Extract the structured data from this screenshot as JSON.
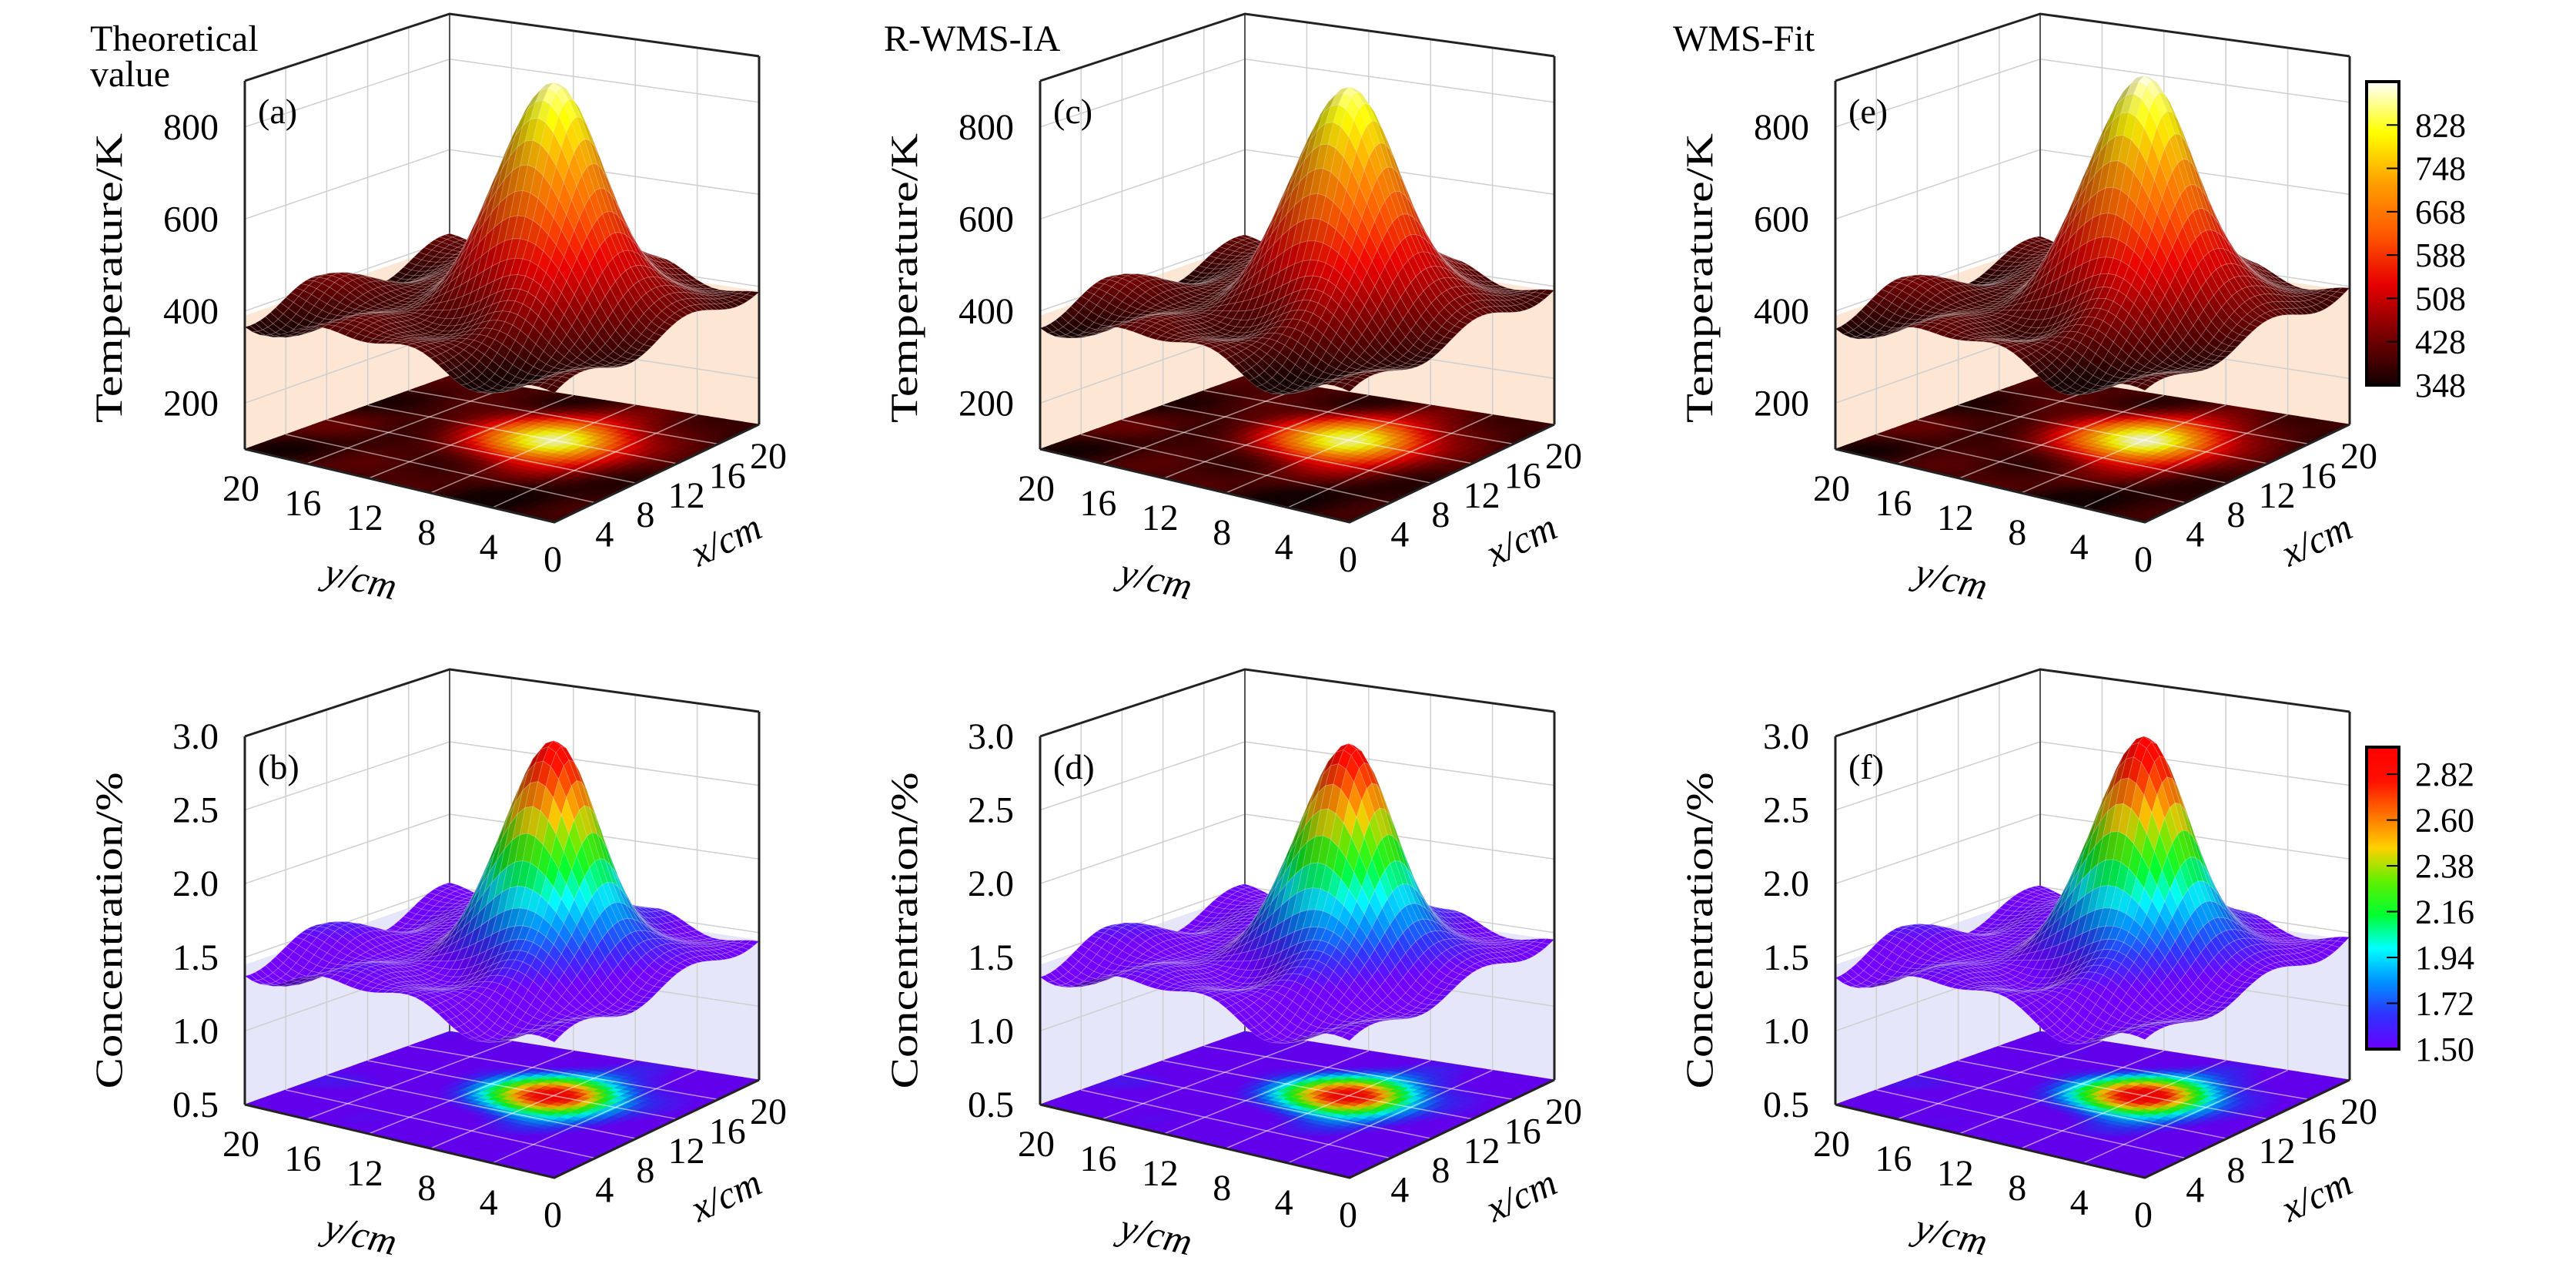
{
  "column_titles": [
    {
      "lines": [
        "Theoretical",
        "value"
      ]
    },
    {
      "lines": [
        "R-WMS-IA"
      ]
    },
    {
      "lines": [
        "WMS-Fit"
      ]
    }
  ],
  "chart_data": [
    {
      "type": "surface3d",
      "panel_label": "(a)",
      "column": 0,
      "row": 0,
      "quantity": "temperature",
      "zlabel": "Temperature/K",
      "xlabel": "x/cm",
      "ylabel": "y/cm",
      "origin_label": "0",
      "xlim": [
        0,
        20
      ],
      "ylim": [
        0,
        20
      ],
      "zlim": [
        100,
        900
      ],
      "xticks": [
        "4",
        "8",
        "12",
        "16",
        "20"
      ],
      "yticks": [
        "4",
        "8",
        "12",
        "16",
        "20"
      ],
      "zticks": [
        200,
        400,
        600,
        800
      ],
      "ztick_labels": [
        "200",
        "400",
        "600",
        "800"
      ],
      "peak": {
        "x": 12,
        "y": 8,
        "value": 880
      },
      "base_level": 390,
      "colormap": "hot",
      "wall_tint": "#fde7d4"
    },
    {
      "type": "surface3d",
      "panel_label": "(b)",
      "column": 0,
      "row": 1,
      "quantity": "concentration",
      "zlabel": "Concentration/%",
      "xlabel": "x/cm",
      "ylabel": "y/cm",
      "origin_label": "0",
      "xlim": [
        0,
        20
      ],
      "ylim": [
        0,
        20
      ],
      "zlim": [
        0.5,
        3.0
      ],
      "xticks": [
        "4",
        "8",
        "12",
        "16",
        "20"
      ],
      "yticks": [
        "4",
        "8",
        "12",
        "16",
        "20"
      ],
      "zticks": [
        0.5,
        1.0,
        1.5,
        2.0,
        2.5,
        3.0
      ],
      "ztick_labels": [
        "0.5",
        "1.0",
        "1.5",
        "2.0",
        "2.5",
        "3.0"
      ],
      "peak": {
        "x": 12,
        "y": 8,
        "value": 2.92
      },
      "base_level": 1.45,
      "colormap": "jet",
      "wall_tint": "#e6e6fa"
    },
    {
      "type": "surface3d",
      "panel_label": "(c)",
      "column": 1,
      "row": 0,
      "quantity": "temperature",
      "zlabel": "Temperature/K",
      "xlabel": "x/cm",
      "ylabel": "y/cm",
      "origin_label": "0",
      "xlim": [
        0,
        20
      ],
      "ylim": [
        0,
        20
      ],
      "zlim": [
        100,
        900
      ],
      "xticks": [
        "4",
        "8",
        "12",
        "16",
        "20"
      ],
      "yticks": [
        "4",
        "8",
        "12",
        "16",
        "20"
      ],
      "zticks": [
        200,
        400,
        600,
        800
      ],
      "ztick_labels": [
        "200",
        "400",
        "600",
        "800"
      ],
      "peak": {
        "x": 12,
        "y": 8,
        "value": 870
      },
      "base_level": 390,
      "colormap": "hot",
      "wall_tint": "#fde7d4"
    },
    {
      "type": "surface3d",
      "panel_label": "(d)",
      "column": 1,
      "row": 1,
      "quantity": "concentration",
      "zlabel": "Concentration/%",
      "xlabel": "x/cm",
      "ylabel": "y/cm",
      "origin_label": "0",
      "xlim": [
        0,
        20
      ],
      "ylim": [
        0,
        20
      ],
      "zlim": [
        0.5,
        3.0
      ],
      "xticks": [
        "4",
        "8",
        "12",
        "16",
        "20"
      ],
      "yticks": [
        "4",
        "8",
        "12",
        "16",
        "20"
      ],
      "zticks": [
        0.5,
        1.0,
        1.5,
        2.0,
        2.5,
        3.0
      ],
      "ztick_labels": [
        "0.5",
        "1.0",
        "1.5",
        "2.0",
        "2.5",
        "3.0"
      ],
      "peak": {
        "x": 12,
        "y": 8,
        "value": 2.9
      },
      "base_level": 1.45,
      "colormap": "jet",
      "wall_tint": "#e6e6fa"
    },
    {
      "type": "surface3d",
      "panel_label": "(e)",
      "column": 2,
      "row": 0,
      "quantity": "temperature",
      "zlabel": "Temperature/K",
      "xlabel": "x/cm",
      "ylabel": "y/cm",
      "origin_label": "0",
      "xlim": [
        0,
        20
      ],
      "ylim": [
        0,
        20
      ],
      "zlim": [
        100,
        900
      ],
      "xticks": [
        "4",
        "8",
        "12",
        "16",
        "20"
      ],
      "yticks": [
        "4",
        "8",
        "12",
        "16",
        "20"
      ],
      "zticks": [
        200,
        400,
        600,
        800
      ],
      "ztick_labels": [
        "200",
        "400",
        "600",
        "800"
      ],
      "peak": {
        "x": 12,
        "y": 8,
        "value": 895
      },
      "base_level": 390,
      "colormap": "hot",
      "wall_tint": "#fde7d4"
    },
    {
      "type": "surface3d",
      "panel_label": "(f)",
      "column": 2,
      "row": 1,
      "quantity": "concentration",
      "zlabel": "Concentration/%",
      "xlabel": "x/cm",
      "ylabel": "y/cm",
      "origin_label": "0",
      "xlim": [
        0,
        20
      ],
      "ylim": [
        0,
        20
      ],
      "zlim": [
        0.5,
        3.0
      ],
      "xticks": [
        "4",
        "8",
        "12",
        "16",
        "20"
      ],
      "yticks": [
        "4",
        "8",
        "12",
        "16",
        "20"
      ],
      "zticks": [
        0.5,
        1.0,
        1.5,
        2.0,
        2.5,
        3.0
      ],
      "ztick_labels": [
        "0.5",
        "1.0",
        "1.5",
        "2.0",
        "2.5",
        "3.0"
      ],
      "peak": {
        "x": 12,
        "y": 8,
        "value": 2.95
      },
      "base_level": 1.45,
      "colormap": "jet",
      "wall_tint": "#e6e6fa"
    }
  ],
  "colorbars": [
    {
      "name": "hot",
      "row": 0,
      "range": [
        348,
        908
      ],
      "ticks": [
        348,
        428,
        508,
        588,
        668,
        748,
        828
      ],
      "tick_labels": [
        "348",
        "428",
        "508",
        "588",
        "668",
        "748",
        "828"
      ],
      "colors": [
        "#140000",
        "#7a0000",
        "#e80000",
        "#ff5a00",
        "#ffa000",
        "#ffff00",
        "#ffffff"
      ]
    },
    {
      "name": "jet",
      "row": 1,
      "range": [
        1.5,
        2.95
      ],
      "ticks": [
        1.5,
        1.72,
        1.94,
        2.16,
        2.38,
        2.6,
        2.82
      ],
      "tick_labels": [
        "1.50",
        "1.72",
        "1.94",
        "2.16",
        "2.38",
        "2.60",
        "2.82"
      ],
      "colors": [
        "#6a00ff",
        "#3030ff",
        "#0090ff",
        "#00ffff",
        "#00ff30",
        "#60f000",
        "#ffd000",
        "#ff7000",
        "#ff1000",
        "#ff0000"
      ]
    }
  ]
}
